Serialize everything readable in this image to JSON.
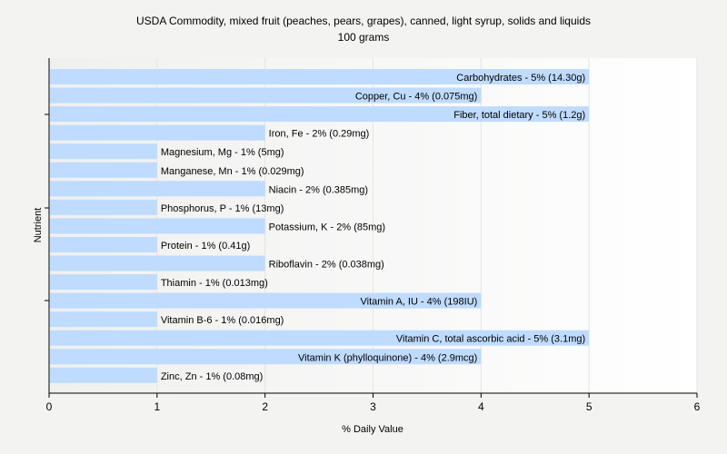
{
  "chart_data": {
    "type": "bar",
    "orientation": "horizontal",
    "title": "USDA Commodity, mixed fruit (peaches, pears, grapes), canned, light syrup, solids and liquids",
    "subtitle": "100 grams",
    "xlabel": "% Daily Value",
    "ylabel": "Nutrient",
    "xlim": [
      0,
      6
    ],
    "xticks": [
      "0",
      "1",
      "2",
      "3",
      "4",
      "5",
      "6"
    ],
    "grid": true,
    "bar_color": "#bfdbfe",
    "categories": [
      "Carbohydrates",
      "Copper, Cu",
      "Fiber, total dietary",
      "Iron, Fe",
      "Magnesium, Mg",
      "Manganese, Mn",
      "Niacin",
      "Phosphorus, P",
      "Potassium, K",
      "Protein",
      "Riboflavin",
      "Thiamin",
      "Vitamin A, IU",
      "Vitamin B-6",
      "Vitamin C, total ascorbic acid",
      "Vitamin K (phylloquinone)",
      "Zinc, Zn"
    ],
    "values": [
      5,
      4,
      5,
      2,
      1,
      1,
      2,
      1,
      2,
      1,
      2,
      1,
      4,
      1,
      5,
      4,
      1
    ],
    "labels": [
      "Carbohydrates - 5% (14.30g)",
      "Copper, Cu - 4% (0.075mg)",
      "Fiber, total dietary - 5% (1.2g)",
      "Iron, Fe - 2% (0.29mg)",
      "Magnesium, Mg - 1% (5mg)",
      "Manganese, Mn - 1% (0.029mg)",
      "Niacin - 2% (0.385mg)",
      "Phosphorus, P - 1% (13mg)",
      "Potassium, K - 2% (85mg)",
      "Protein - 1% (0.41g)",
      "Riboflavin - 2% (0.038mg)",
      "Thiamin - 1% (0.013mg)",
      "Vitamin A, IU - 4% (198IU)",
      "Vitamin B-6 - 1% (0.016mg)",
      "Vitamin C, total ascorbic acid - 5% (3.1mg)",
      "Vitamin K (phylloquinone) - 4% (2.9mcg)",
      "Zinc, Zn - 1% (0.08mg)"
    ]
  }
}
